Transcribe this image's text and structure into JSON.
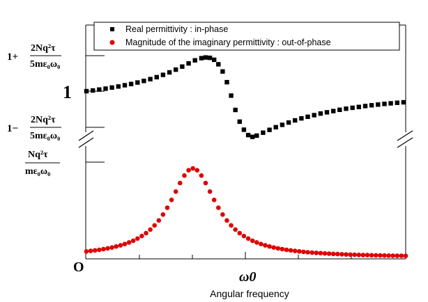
{
  "chart_data": {
    "type": "scatter",
    "xlabel": "Angular frequency",
    "x_tick_labels": {
      "origin": "O",
      "center": "ω0"
    },
    "y_tick_labels": {
      "upper": {
        "prefix": "1+",
        "numerator": "2Nq²τ",
        "denominator": "5mε₀ω₀"
      },
      "one": "1",
      "lower": {
        "prefix": "1−",
        "numerator": "2Nq²τ",
        "denominator": "5mε₀ω₀"
      },
      "peak": {
        "numerator": "Nq²τ",
        "denominator": "mε₀ω₀"
      }
    },
    "x_range": [
      0,
      3
    ],
    "omega0": 1,
    "axis_break": true,
    "legend_position": "top-right",
    "series": [
      {
        "name": "Real permittivity : in-phase",
        "color": "#000000",
        "marker": "square",
        "points": [
          [
            0.0,
            1.0
          ],
          [
            0.06,
            1.004
          ],
          [
            0.12,
            1.009
          ],
          [
            0.18,
            1.014
          ],
          [
            0.24,
            1.02
          ],
          [
            0.3,
            1.026
          ],
          [
            0.36,
            1.033
          ],
          [
            0.42,
            1.04
          ],
          [
            0.48,
            1.048
          ],
          [
            0.54,
            1.057
          ],
          [
            0.6,
            1.067
          ],
          [
            0.66,
            1.078
          ],
          [
            0.72,
            1.091
          ],
          [
            0.78,
            1.105
          ],
          [
            0.84,
            1.12
          ],
          [
            0.9,
            1.137
          ],
          [
            0.96,
            1.155
          ],
          [
            1.02,
            1.172
          ],
          [
            1.08,
            1.184
          ],
          [
            1.12,
            1.188
          ],
          [
            1.16,
            1.186
          ],
          [
            1.2,
            1.175
          ],
          [
            1.24,
            1.15
          ],
          [
            1.28,
            1.11
          ],
          [
            1.32,
            1.05
          ],
          [
            1.36,
            0.975
          ],
          [
            1.4,
            0.895
          ],
          [
            1.44,
            0.83
          ],
          [
            1.48,
            0.785
          ],
          [
            1.52,
            0.755
          ],
          [
            1.56,
            0.745
          ],
          [
            1.6,
            0.752
          ],
          [
            1.66,
            0.768
          ],
          [
            1.72,
            0.784
          ],
          [
            1.78,
            0.799
          ],
          [
            1.84,
            0.812
          ],
          [
            1.9,
            0.825
          ],
          [
            1.96,
            0.837
          ],
          [
            2.02,
            0.848
          ],
          [
            2.08,
            0.857
          ],
          [
            2.14,
            0.866
          ],
          [
            2.2,
            0.875
          ],
          [
            2.26,
            0.882
          ],
          [
            2.32,
            0.889
          ],
          [
            2.38,
            0.896
          ],
          [
            2.44,
            0.902
          ],
          [
            2.5,
            0.907
          ],
          [
            2.56,
            0.912
          ],
          [
            2.62,
            0.917
          ],
          [
            2.68,
            0.921
          ],
          [
            2.74,
            0.925
          ],
          [
            2.8,
            0.929
          ],
          [
            2.86,
            0.932
          ],
          [
            2.92,
            0.935
          ],
          [
            2.98,
            0.938
          ]
        ]
      },
      {
        "name": "Magnitude of the imaginary permittivity : out-of-phase",
        "color": "#e00000",
        "marker": "circle",
        "peak_x": 1.0,
        "relative_height_ratio": 0.95,
        "x_start": 0,
        "x_end": 3,
        "x_step": 0.04
      }
    ]
  }
}
